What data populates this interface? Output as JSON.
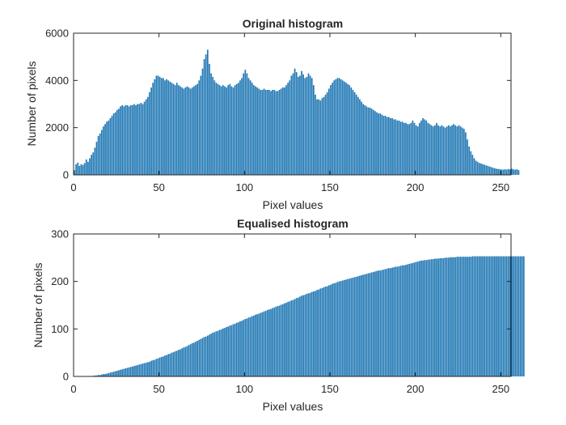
{
  "chart_data": [
    {
      "type": "bar",
      "title": "Original histogram",
      "xlabel": "Pixel values",
      "ylabel": "Number of pixels",
      "xlim": [
        0,
        256
      ],
      "ylim": [
        0,
        6000
      ],
      "xticks": [
        0,
        50,
        100,
        150,
        200,
        250
      ],
      "yticks": [
        0,
        2000,
        4000,
        6000
      ],
      "grid": false,
      "color": "#1f77b4",
      "x_start": 0,
      "values": [
        200,
        450,
        520,
        380,
        450,
        420,
        500,
        650,
        550,
        700,
        850,
        950,
        1150,
        1400,
        1650,
        1750,
        1900,
        2050,
        2150,
        2250,
        2300,
        2400,
        2500,
        2600,
        2650,
        2750,
        2800,
        2900,
        2950,
        2900,
        2950,
        2950,
        2900,
        2950,
        2950,
        3000,
        2950,
        3000,
        3000,
        3050,
        3000,
        3100,
        3200,
        3300,
        3500,
        3700,
        3900,
        4050,
        4200,
        4200,
        4150,
        4100,
        4100,
        4000,
        4050,
        4000,
        3950,
        3900,
        3850,
        3800,
        3900,
        3800,
        3750,
        3700,
        3650,
        3700,
        3750,
        3700,
        3650,
        3700,
        3750,
        3800,
        3850,
        4000,
        4200,
        4500,
        4900,
        5100,
        5300,
        4700,
        4300,
        4150,
        4000,
        3900,
        3850,
        3800,
        3750,
        3800,
        3750,
        3700,
        3800,
        3850,
        3750,
        3700,
        3800,
        3850,
        3900,
        4000,
        4100,
        4300,
        4450,
        4300,
        4100,
        4000,
        3900,
        3800,
        3750,
        3700,
        3650,
        3600,
        3600,
        3650,
        3600,
        3600,
        3600,
        3550,
        3600,
        3600,
        3550,
        3550,
        3600,
        3650,
        3700,
        3700,
        3800,
        3900,
        4000,
        4200,
        4300,
        4500,
        4350,
        4150,
        4200,
        4400,
        4250,
        4100,
        4150,
        4300,
        4200,
        4100,
        3800,
        3400,
        3200,
        3200,
        3150,
        3250,
        3300,
        3400,
        3500,
        3650,
        3800,
        3900,
        4000,
        4050,
        4100,
        4100,
        4050,
        4000,
        3950,
        3900,
        3850,
        3800,
        3700,
        3600,
        3500,
        3400,
        3300,
        3200,
        3100,
        3000,
        2950,
        2900,
        2850,
        2850,
        2800,
        2750,
        2700,
        2650,
        2600,
        2600,
        2550,
        2500,
        2500,
        2450,
        2450,
        2400,
        2400,
        2350,
        2350,
        2300,
        2300,
        2250,
        2250,
        2200,
        2200,
        2150,
        2150,
        2200,
        2300,
        2200,
        2100,
        2050,
        2200,
        2300,
        2400,
        2350,
        2300,
        2200,
        2150,
        2100,
        2050,
        2100,
        2200,
        2100,
        2050,
        2100,
        2050,
        2000,
        2050,
        2100,
        2050,
        2100,
        2150,
        2100,
        2050,
        2100,
        2050,
        2000,
        1950,
        1800,
        1500,
        1200,
        1000,
        850,
        700,
        600,
        550,
        500,
        480,
        450,
        430,
        400,
        380,
        350,
        330,
        300,
        280,
        260,
        250,
        240,
        230,
        220,
        240,
        220,
        250,
        230,
        260,
        230,
        220,
        240,
        200
      ],
      "value_rule": "original pixel-count histogram, one bar per pixel value 0..255"
    },
    {
      "type": "bar",
      "title": "Equalised histogram",
      "xlabel": "Pixel values",
      "ylabel": "Number of pixels",
      "xlim": [
        0,
        256
      ],
      "ylim": [
        0,
        300
      ],
      "xticks": [
        0,
        50,
        100,
        150,
        200,
        250
      ],
      "yticks": [
        0,
        100,
        200,
        300
      ],
      "grid": false,
      "color": "#1f77b4",
      "x_start": 0,
      "values": [
        0,
        0,
        0,
        0,
        0,
        0,
        0,
        0,
        0,
        0,
        1,
        1,
        2,
        2,
        3,
        3,
        4,
        5,
        5,
        6,
        7,
        8,
        9,
        10,
        11,
        12,
        13,
        14,
        15,
        16,
        17,
        18,
        19,
        20,
        21,
        22,
        23,
        24,
        25,
        26,
        27,
        28,
        29,
        30,
        31,
        33,
        34,
        35,
        37,
        38,
        40,
        41,
        42,
        44,
        45,
        47,
        48,
        50,
        51,
        53,
        54,
        56,
        57,
        59,
        61,
        62,
        64,
        66,
        68,
        70,
        71,
        73,
        75,
        77,
        79,
        81,
        83,
        84,
        86,
        88,
        90,
        92,
        93,
        95,
        96,
        98,
        99,
        101,
        102,
        104,
        105,
        107,
        108,
        110,
        111,
        113,
        114,
        116,
        117,
        119,
        121,
        122,
        124,
        125,
        127,
        128,
        130,
        131,
        132,
        134,
        135,
        137,
        138,
        140,
        141,
        142,
        144,
        145,
        147,
        148,
        149,
        151,
        152,
        154,
        155,
        157,
        158,
        160,
        161,
        163,
        165,
        166,
        168,
        170,
        171,
        172,
        174,
        175,
        176,
        178,
        179,
        180,
        182,
        183,
        185,
        186,
        188,
        189,
        190,
        192,
        193,
        195,
        196,
        197,
        199,
        200,
        201,
        202,
        203,
        204,
        205,
        206,
        207,
        208,
        209,
        210,
        211,
        212,
        213,
        214,
        215,
        216,
        217,
        218,
        219,
        220,
        221,
        222,
        223,
        223,
        224,
        225,
        226,
        227,
        228,
        228,
        229,
        230,
        231,
        231,
        232,
        233,
        234,
        234,
        235,
        236,
        237,
        238,
        239,
        240,
        241,
        242,
        243,
        244,
        244,
        245,
        245,
        246,
        246,
        247,
        247,
        248,
        248,
        248,
        249,
        249,
        249,
        250,
        250,
        250,
        251,
        251,
        251,
        251,
        252,
        252,
        252,
        252,
        252,
        252,
        252,
        252,
        252,
        253,
        253,
        253,
        253,
        253,
        253,
        253,
        253,
        253,
        253,
        253,
        253,
        253,
        253,
        253,
        253,
        253,
        253,
        253,
        253,
        253,
        253,
        253,
        253,
        253,
        253,
        253,
        253,
        253,
        253,
        253
      ],
      "value_rule": "equalised pixel-count histogram, one bar per pixel value 0..255"
    }
  ]
}
